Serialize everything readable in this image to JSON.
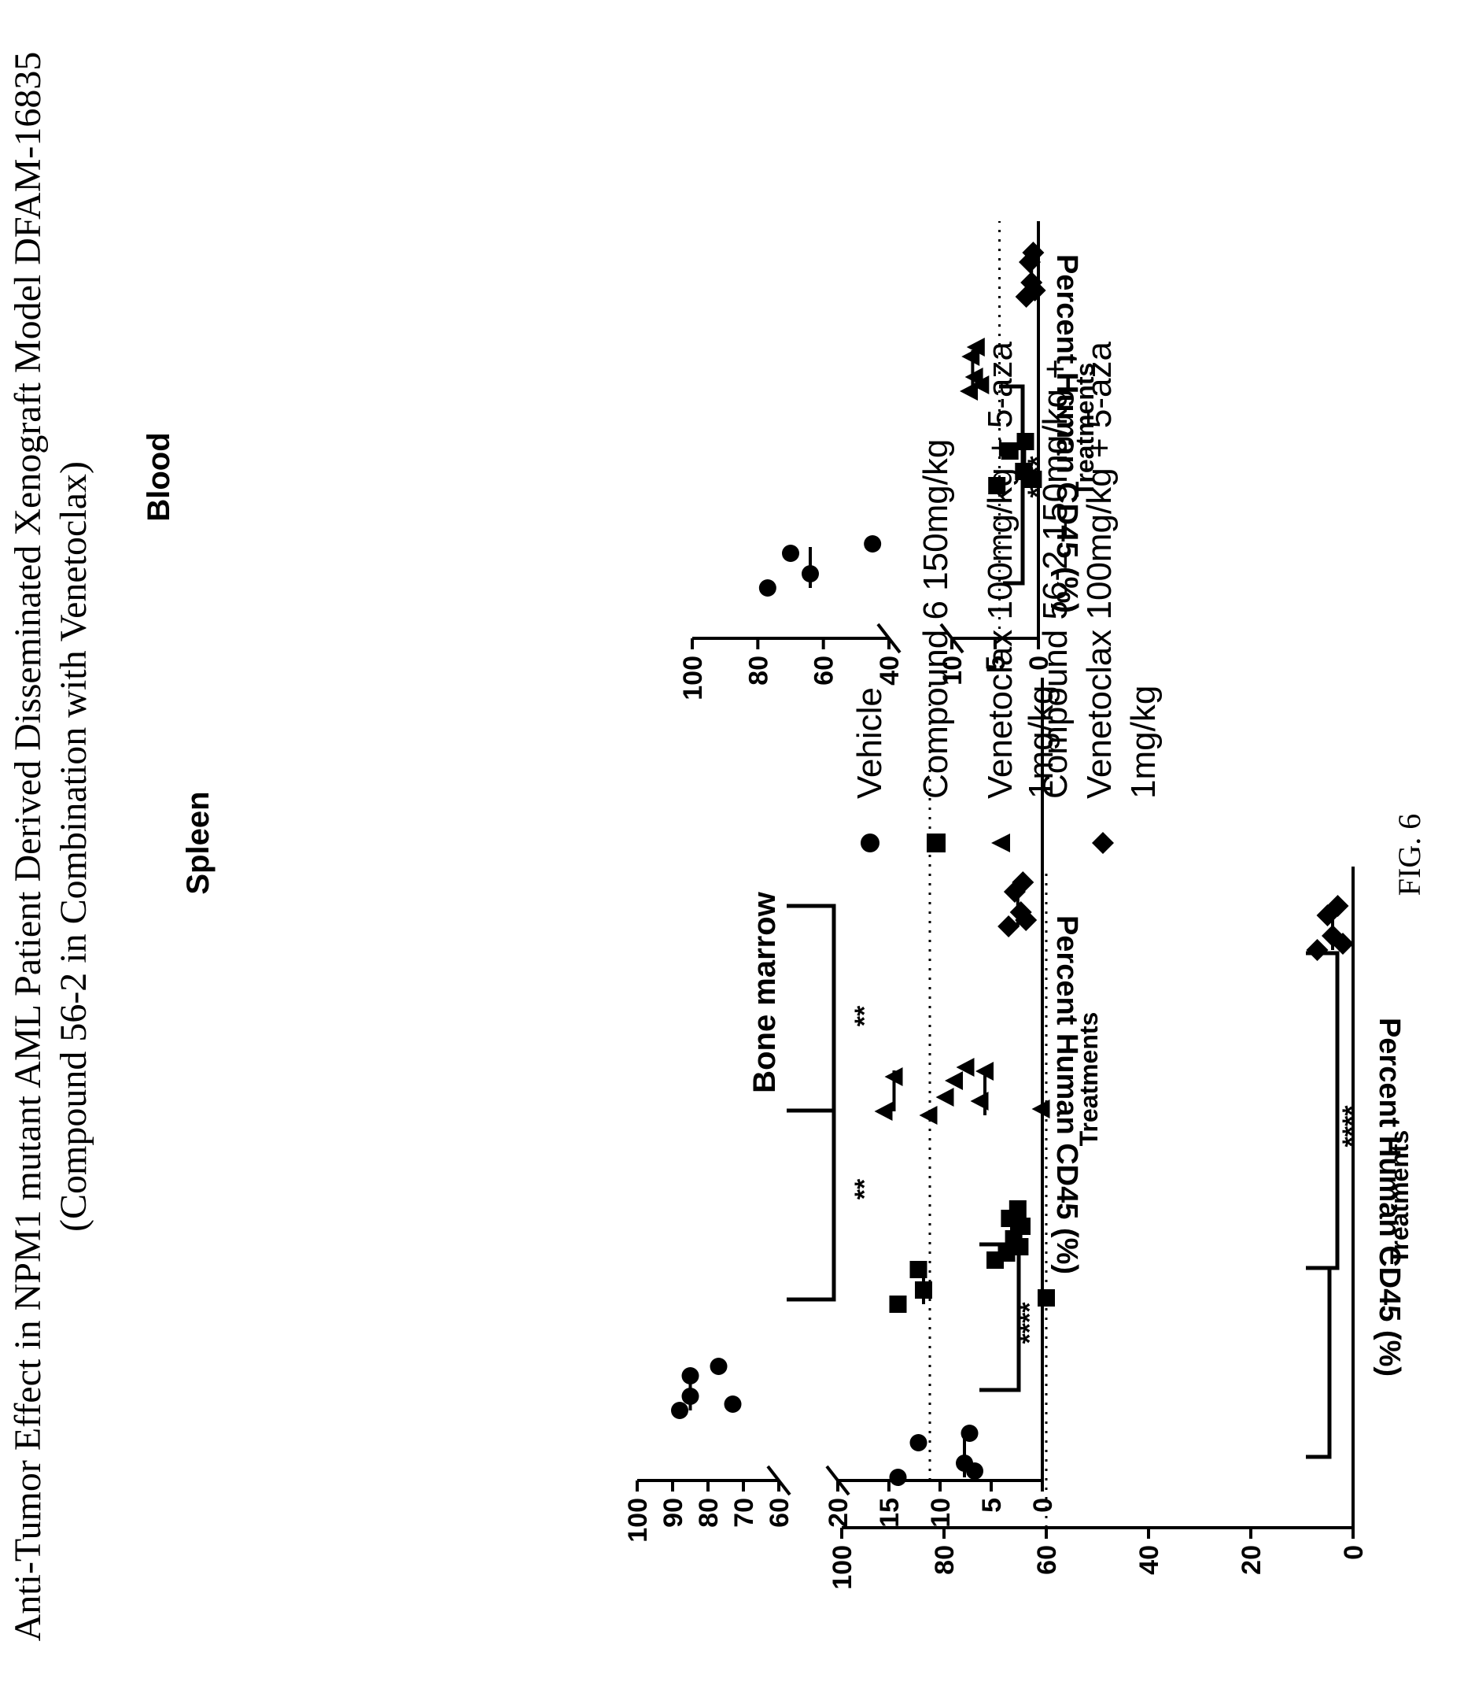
{
  "title": {
    "line1": "Anti-Tumor Effect in NPM1 mutant AML Patient Derived Disseminated Xenograft Model DFAM-16835",
    "line2": "(Compound 56-2 in Combination with Venetoclax)"
  },
  "figure_label": "FIG. 6",
  "legend": [
    {
      "label": "Vehicle",
      "marker": "circle"
    },
    {
      "label": "Compound 6 150mg/kg",
      "marker": "square"
    },
    {
      "label": "Venetoclax 100mg/kg + 5-aza 1mg/kg",
      "marker": "triangle"
    },
    {
      "label": "Compound 56-2 150mg/kg + Venetoclax 100mg/kg + 5-aza 1mg/kg",
      "label_lines": [
        "Compound 56-2 150mg/kg +",
        "Venetoclax 100mg/kg + 5-aza",
        "1mg/kg"
      ],
      "marker": "diamond"
    }
  ],
  "chart_data": [
    {
      "type": "scatter",
      "title": "Spleen",
      "xlabel": "Treatments",
      "ylabel": "Percent Human CD45 (%)",
      "y_axis_break": {
        "lower": [
          0,
          20
        ],
        "upper": [
          60,
          100
        ]
      },
      "yticks_lower": [
        "0",
        "5",
        "10",
        "15",
        "20"
      ],
      "yticks_upper": [
        "60",
        "70",
        "80",
        "90",
        "100"
      ],
      "reference_line": 11,
      "series": [
        {
          "name": "Vehicle",
          "marker": "circle",
          "values": [
            88,
            85,
            85,
            77,
            73
          ],
          "mean": 85
        },
        {
          "name": "Compound 6 150mg/kg",
          "marker": "square",
          "values": [
            3.5,
            3.2,
            2.8,
            2.4,
            2.2,
            2.0
          ],
          "mean": 3.0
        },
        {
          "name": "Venetoclax 100mg/kg + 5-aza 1mg/kg",
          "marker": "triangle",
          "values": [
            15.5,
            14.5,
            9.5,
            7.5
          ],
          "mean": 14.5
        },
        {
          "name": "Compound 56-2 150mg/kg + Venetoclax 100mg/kg + 5-aza 1mg/kg",
          "marker": "diamond",
          "values": [
            3.3,
            2.7,
            2.1,
            1.9,
            1.6
          ],
          "mean": 2.4
        }
      ],
      "significance": [
        {
          "label": "****",
          "between": [
            "Vehicle",
            "Venetoclax 100mg/kg + 5-aza 1mg/kg + Compound 56-2 150mg/kg + Venetoclax 100mg/kg + 5-aza 1mg/kg"
          ]
        },
        {
          "label": "**",
          "between": [
            "Compound 6 150mg/kg",
            "Venetoclax 100mg/kg + 5-aza 1mg/kg"
          ]
        },
        {
          "label": "**",
          "between": [
            "Venetoclax 100mg/kg + 5-aza 1mg/kg",
            "Compound 56-2 150mg/kg + Venetoclax 100mg/kg + 5-aza 1mg/kg"
          ]
        }
      ]
    },
    {
      "type": "scatter",
      "title": "Blood",
      "xlabel": "Treatments",
      "ylabel": "Percent Human CD45 (%)",
      "y_axis_break": {
        "lower": [
          0,
          10
        ],
        "upper": [
          40,
          100
        ]
      },
      "yticks_lower": [
        "0",
        "5",
        "10"
      ],
      "yticks_upper": [
        "40",
        "60",
        "80",
        "100"
      ],
      "reference_line": 4.5,
      "series": [
        {
          "name": "Vehicle",
          "marker": "circle",
          "values": [
            77,
            70,
            64,
            45
          ],
          "mean": 64
        },
        {
          "name": "Compound 6 150mg/kg",
          "marker": "square",
          "values": [
            4.8,
            3.3,
            1.7,
            1.5,
            0.6
          ],
          "mean": 1.6
        },
        {
          "name": "Venetoclax 100mg/kg + 5-aza 1mg/kg",
          "marker": "triangle",
          "values": [
            8.0,
            7.8,
            7.4,
            7.2,
            6.7
          ],
          "mean": 7.6
        },
        {
          "name": "Compound 56-2 150mg/kg + Venetoclax 100mg/kg + 5-aza 1mg/kg",
          "marker": "diamond",
          "values": [
            1.4,
            1.0,
            0.8,
            0.6,
            0.4
          ],
          "mean": 0.8
        }
      ],
      "significance": [
        {
          "label": "****",
          "between": [
            "Vehicle",
            "Compound 6 150mg/kg + Venetoclax 100mg/kg + 5-aza 1mg/kg + Compound 56-2 150mg/kg + Venetoclax 100mg/kg + 5-aza 1mg/kg"
          ]
        }
      ]
    },
    {
      "type": "scatter",
      "title": "Bone marrow",
      "xlabel": "Treatments",
      "ylabel": "Percent Human CD45 (%)",
      "ylim": [
        0,
        100
      ],
      "yticks": [
        "0",
        "20",
        "40",
        "60",
        "80",
        "100"
      ],
      "reference_line": 60,
      "series": [
        {
          "name": "Vehicle",
          "marker": "circle",
          "values": [
            89,
            85,
            76,
            75,
            74
          ],
          "mean": 76
        },
        {
          "name": "Compound 6 150mg/kg",
          "marker": "square",
          "values": [
            89,
            85,
            84,
            70,
            60
          ],
          "mean": 84
        },
        {
          "name": "Venetoclax 100mg/kg + 5-aza 1mg/kg",
          "marker": "triangle",
          "values": [
            83,
            78,
            73,
            72,
            61
          ],
          "mean": 72
        },
        {
          "name": "Compound 56-2 150mg/kg + Venetoclax 100mg/kg + 5-aza 1mg/kg",
          "marker": "diamond",
          "values": [
            7,
            5,
            4,
            3,
            2
          ],
          "mean": 4
        }
      ],
      "significance": [
        {
          "label": "****",
          "between": [
            "Vehicle + Compound 6 150mg/kg + Venetoclax 100mg/kg + 5-aza 1mg/kg",
            "Compound 56-2 150mg/kg + Venetoclax 100mg/kg + 5-aza 1mg/kg"
          ]
        }
      ]
    }
  ]
}
